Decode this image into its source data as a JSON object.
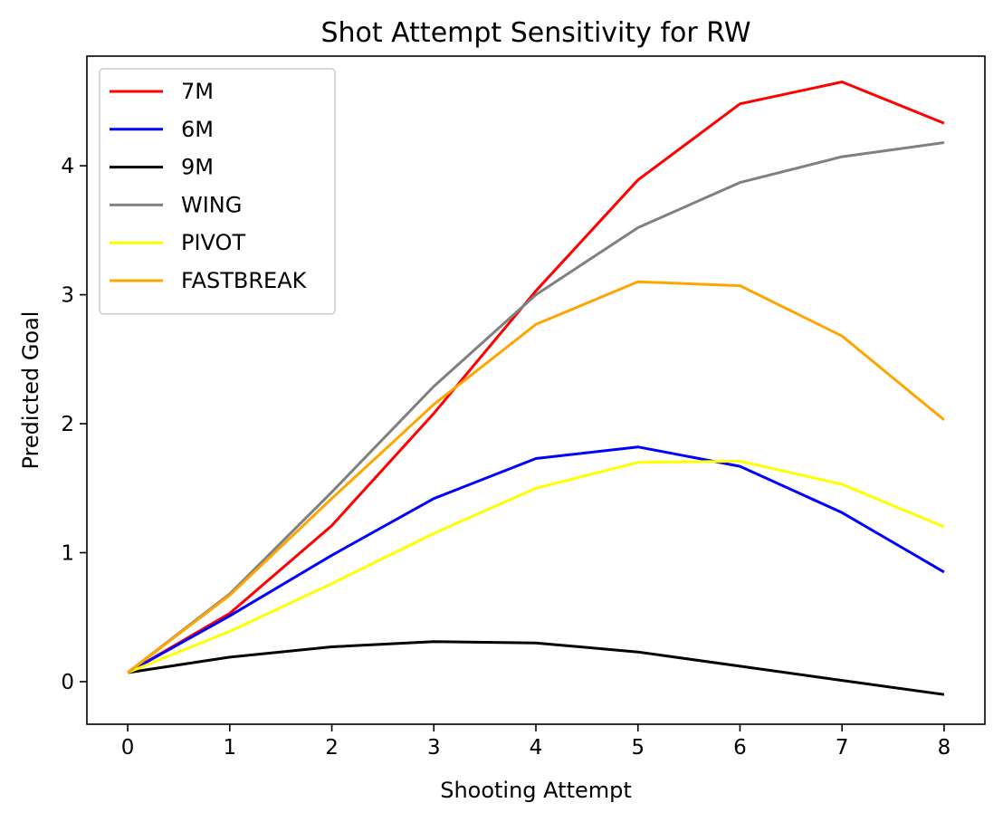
{
  "chart_data": {
    "type": "line",
    "title": "Shot Attempt Sensitivity for RW",
    "xlabel": "Shooting Attempt",
    "ylabel": "Predicted Goal",
    "x": [
      0,
      1,
      2,
      3,
      4,
      5,
      6,
      7,
      8
    ],
    "xlim": [
      -0.4,
      8.4
    ],
    "ylim": [
      -0.33,
      4.85
    ],
    "xticks": [
      "0",
      "1",
      "2",
      "3",
      "4",
      "5",
      "6",
      "7",
      "8"
    ],
    "yticks": [
      "0",
      "1",
      "2",
      "3",
      "4"
    ],
    "grid": false,
    "legend_position": "top-left",
    "series": [
      {
        "name": "7M",
        "color": "#ff0000",
        "values": [
          0.07,
          0.53,
          1.21,
          2.08,
          3.03,
          3.89,
          4.48,
          4.65,
          4.33
        ]
      },
      {
        "name": "6M",
        "color": "#0000ff",
        "values": [
          0.07,
          0.51,
          0.98,
          1.42,
          1.73,
          1.82,
          1.67,
          1.31,
          0.85
        ]
      },
      {
        "name": "9M",
        "color": "#000000",
        "values": [
          0.07,
          0.19,
          0.27,
          0.31,
          0.3,
          0.23,
          0.12,
          0.01,
          -0.1
        ]
      },
      {
        "name": "WING",
        "color": "#808080",
        "values": [
          0.07,
          0.68,
          1.47,
          2.29,
          3.0,
          3.52,
          3.87,
          4.07,
          4.18
        ]
      },
      {
        "name": "PIVOT",
        "color": "#ffff00",
        "values": [
          0.07,
          0.39,
          0.76,
          1.15,
          1.5,
          1.7,
          1.71,
          1.53,
          1.2
        ]
      },
      {
        "name": "FASTBREAK",
        "color": "#ffa500",
        "values": [
          0.07,
          0.67,
          1.42,
          2.15,
          2.77,
          3.1,
          3.07,
          2.68,
          2.03
        ]
      }
    ]
  }
}
